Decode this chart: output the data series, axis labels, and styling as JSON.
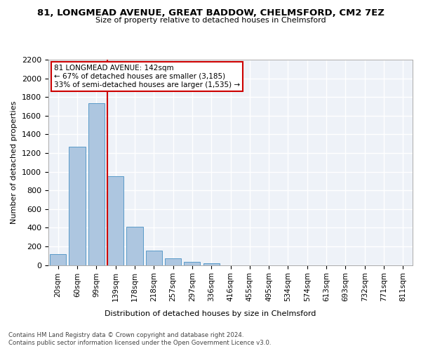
{
  "title": "81, LONGMEAD AVENUE, GREAT BADDOW, CHELMSFORD, CM2 7EZ",
  "subtitle": "Size of property relative to detached houses in Chelmsford",
  "xlabel": "Distribution of detached houses by size in Chelmsford",
  "ylabel": "Number of detached properties",
  "bar_labels": [
    "20sqm",
    "60sqm",
    "99sqm",
    "139sqm",
    "178sqm",
    "218sqm",
    "257sqm",
    "297sqm",
    "336sqm",
    "416sqm",
    "455sqm",
    "495sqm",
    "534sqm",
    "574sqm",
    "613sqm",
    "693sqm",
    "732sqm",
    "771sqm",
    "811sqm"
  ],
  "bar_values": [
    120,
    1265,
    1730,
    950,
    410,
    155,
    75,
    35,
    20,
    0,
    0,
    0,
    0,
    0,
    0,
    0,
    0,
    0,
    0
  ],
  "bar_color": "#adc6e0",
  "bar_edgecolor": "#5a9ac8",
  "property_index": 3,
  "property_line_color": "#cc0000",
  "annotation_text": "81 LONGMEAD AVENUE: 142sqm\n← 67% of detached houses are smaller (3,185)\n33% of semi-detached houses are larger (1,535) →",
  "annotation_box_color": "#cc0000",
  "ylim": [
    0,
    2200
  ],
  "background_color": "#eef2f8",
  "grid_color": "#ffffff",
  "footer_line1": "Contains HM Land Registry data © Crown copyright and database right 2024.",
  "footer_line2": "Contains public sector information licensed under the Open Government Licence v3.0."
}
